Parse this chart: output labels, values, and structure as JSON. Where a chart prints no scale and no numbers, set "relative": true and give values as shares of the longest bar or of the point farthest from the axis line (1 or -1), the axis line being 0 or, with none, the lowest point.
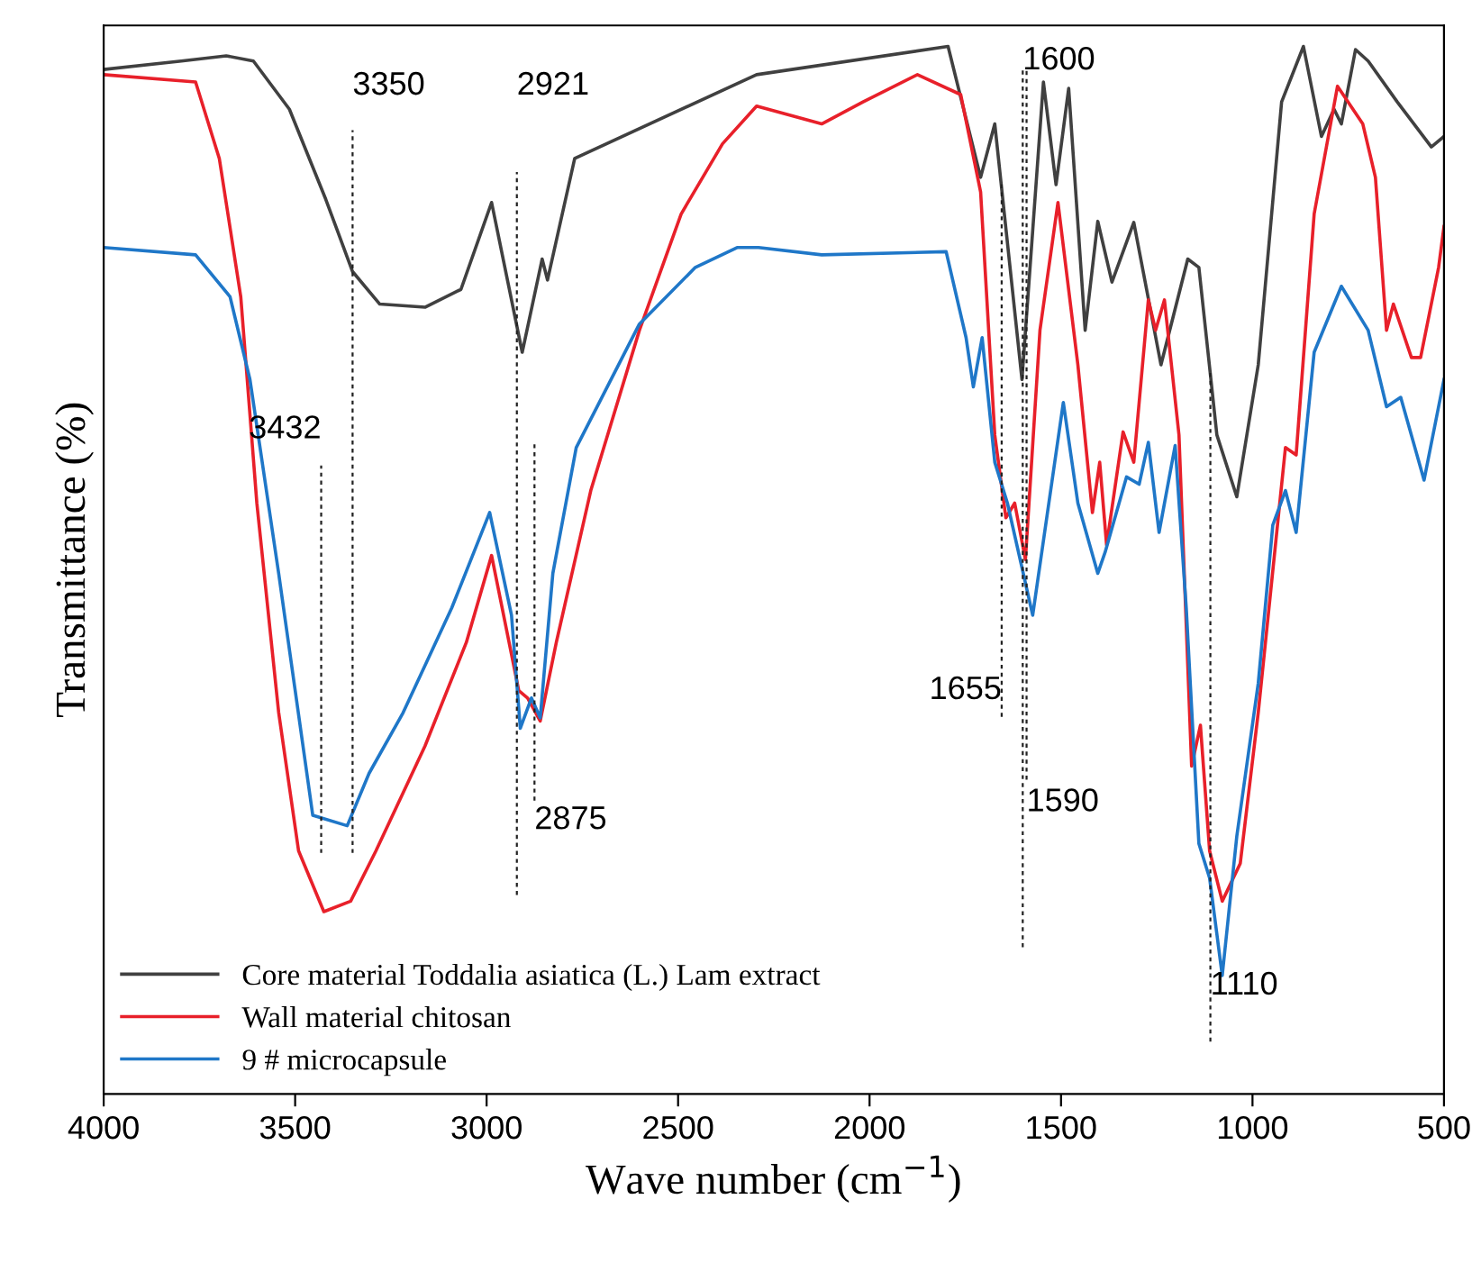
{
  "chart_data": {
    "type": "line",
    "relative": true,
    "xlabel": "Wave number (cm$^{−1}$)",
    "ylabel": "Transmittance (%)",
    "xlim": [
      4000,
      500
    ],
    "xticks": [
      4000,
      3500,
      3000,
      2500,
      2000,
      1500,
      1000,
      500
    ],
    "tick_labels": "x",
    "grid": false,
    "legend": "bottom left",
    "marker": "none",
    "line_style": "solid",
    "series": [
      {
        "name": "Core material Toddalia asiatica (L.) Lam extract",
        "color": "#404040",
        "x": [
          4000,
          3797,
          3680,
          3609,
          3515,
          3420,
          3350,
          3279,
          3161,
          3067,
          2987,
          2907,
          2855,
          2841,
          2770,
          2295,
          1795,
          1710,
          1673,
          1602,
          1546,
          1513,
          1480,
          1437,
          1404,
          1367,
          1310,
          1239,
          1169,
          1140,
          1093,
          1041,
          985,
          924,
          867,
          820,
          787,
          768,
          731,
          698,
          622,
          533,
          500
        ],
        "values": [
          0.978,
          0.986,
          0.991,
          0.986,
          0.94,
          0.854,
          0.785,
          0.754,
          0.751,
          0.768,
          0.851,
          0.708,
          0.797,
          0.777,
          0.893,
          0.973,
          1.0,
          0.875,
          0.926,
          0.682,
          0.966,
          0.868,
          0.96,
          0.729,
          0.833,
          0.775,
          0.832,
          0.696,
          0.797,
          0.789,
          0.629,
          0.57,
          0.696,
          0.947,
          1.0,
          0.914,
          0.94,
          0.926,
          0.997,
          0.986,
          0.947,
          0.904,
          0.914
        ]
      },
      {
        "name": "Wall material chitosan",
        "color": "#e8202a",
        "x": [
          4000,
          3760,
          3698,
          3642,
          3600,
          3543,
          3491,
          3425,
          3355,
          3289,
          3161,
          3053,
          2987,
          2916,
          2893,
          2860,
          2818,
          2728,
          2601,
          2492,
          2384,
          2295,
          2125,
          2017,
          1875,
          1762,
          1710,
          1673,
          1644,
          1621,
          1593,
          1555,
          1508,
          1456,
          1418,
          1399,
          1381,
          1338,
          1310,
          1272,
          1253,
          1230,
          1192,
          1159,
          1136,
          1112,
          1079,
          1032,
          985,
          914,
          886,
          839,
          778,
          712,
          679,
          650,
          632,
          585,
          561,
          514,
          500
        ],
        "values": [
          0.973,
          0.966,
          0.893,
          0.761,
          0.564,
          0.364,
          0.232,
          0.174,
          0.184,
          0.232,
          0.332,
          0.431,
          0.514,
          0.385,
          0.378,
          0.356,
          0.431,
          0.576,
          0.729,
          0.84,
          0.907,
          0.943,
          0.926,
          0.947,
          0.973,
          0.954,
          0.861,
          0.629,
          0.55,
          0.564,
          0.51,
          0.729,
          0.851,
          0.696,
          0.555,
          0.603,
          0.524,
          0.632,
          0.603,
          0.758,
          0.729,
          0.758,
          0.629,
          0.313,
          0.352,
          0.232,
          0.184,
          0.22,
          0.364,
          0.617,
          0.61,
          0.84,
          0.962,
          0.926,
          0.875,
          0.729,
          0.754,
          0.703,
          0.703,
          0.789,
          0.828
        ]
      },
      {
        "name": "9 # microcapsule",
        "color": "#1f77c8",
        "x": [
          4000,
          3760,
          3670,
          3618,
          3543,
          3454,
          3364,
          3307,
          3218,
          3091,
          2992,
          2935,
          2912,
          2883,
          2860,
          2827,
          2766,
          2601,
          2455,
          2346,
          2290,
          2125,
          1800,
          1748,
          1729,
          1706,
          1673,
          1640,
          1574,
          1494,
          1456,
          1404,
          1385,
          1329,
          1296,
          1272,
          1244,
          1202,
          1173,
          1140,
          1112,
          1079,
          1041,
          985,
          947,
          914,
          886,
          839,
          768,
          698,
          650,
          613,
          552,
          500
        ],
        "values": [
          0.808,
          0.801,
          0.761,
          0.682,
          0.497,
          0.266,
          0.256,
          0.306,
          0.364,
          0.464,
          0.555,
          0.457,
          0.349,
          0.378,
          0.359,
          0.497,
          0.617,
          0.735,
          0.789,
          0.808,
          0.808,
          0.801,
          0.804,
          0.722,
          0.675,
          0.722,
          0.603,
          0.564,
          0.457,
          0.66,
          0.564,
          0.497,
          0.517,
          0.589,
          0.582,
          0.622,
          0.536,
          0.619,
          0.464,
          0.239,
          0.206,
          0.113,
          0.246,
          0.392,
          0.543,
          0.576,
          0.536,
          0.708,
          0.771,
          0.729,
          0.656,
          0.665,
          0.586,
          0.682
        ]
      }
    ],
    "ref_lines": [
      {
        "axis": "x",
        "value": 3350,
        "label": "3350",
        "line_style": "dashed"
      },
      {
        "axis": "x",
        "value": 2921,
        "label": "2921",
        "line_style": "dashed"
      },
      {
        "axis": "x",
        "value": 3432,
        "label": "3432",
        "line_style": "dashed"
      },
      {
        "axis": "x",
        "value": 2875,
        "label": "2875",
        "line_style": "dashed"
      },
      {
        "axis": "x",
        "value": 1655,
        "label": "1655",
        "line_style": "dashed"
      },
      {
        "axis": "x",
        "value": 1600,
        "label": "1600",
        "line_style": "dashed"
      },
      {
        "axis": "x",
        "value": 1590,
        "label": "1590",
        "line_style": "dashed"
      },
      {
        "axis": "x",
        "value": 1110,
        "label": "1110",
        "line_style": "dashed"
      }
    ]
  }
}
